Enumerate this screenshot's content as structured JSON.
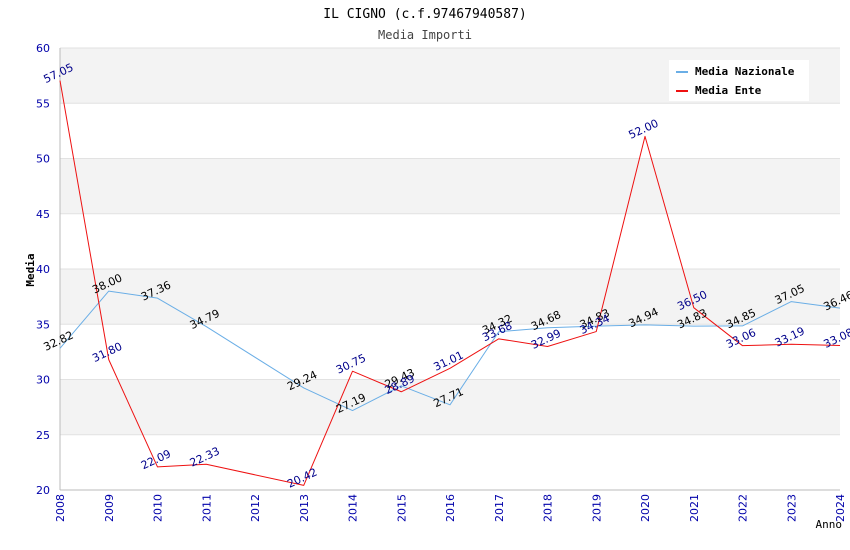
{
  "chart_data": {
    "type": "line",
    "title": "IL CIGNO (c.f.97467940587)",
    "subtitle": "Media Importi",
    "xlabel": "Anno",
    "ylabel": "Media",
    "ylim": [
      20,
      60
    ],
    "yticks": [
      20,
      25,
      30,
      35,
      40,
      45,
      50,
      55,
      60
    ],
    "grid": true,
    "legend_position": "top-right",
    "x": [
      "2008",
      "2009",
      "2010",
      "2011",
      "2012",
      "2013",
      "2014",
      "2015",
      "2016",
      "2017",
      "2018",
      "2019",
      "2020",
      "2021",
      "2022",
      "2023",
      "2024"
    ],
    "series": [
      {
        "name": "Media Nazionale",
        "color": "#6aaee6",
        "label_color": "#000000",
        "x": [
          "2008",
          "2009",
          "2010",
          "2011",
          "2013",
          "2014",
          "2015",
          "2016",
          "2017",
          "2018",
          "2019",
          "2020",
          "2021",
          "2022",
          "2023",
          "2024"
        ],
        "values": [
          32.82,
          38.0,
          37.36,
          34.79,
          29.24,
          27.19,
          29.43,
          27.71,
          34.32,
          34.68,
          34.83,
          34.94,
          34.83,
          34.85,
          37.05,
          36.46
        ],
        "labels": [
          "32.82",
          "38.00",
          "37.36",
          "34.79",
          "29.24",
          "27.19",
          "29.43",
          "27.71",
          "34.32",
          "34.68",
          "34.83",
          "34.94",
          "34.83",
          "34.85",
          "37.05",
          "36.46"
        ]
      },
      {
        "name": "Media Ente",
        "color": "#ee1111",
        "label_color": "#00008b",
        "x": [
          "2008",
          "2009",
          "2010",
          "2011",
          "2013",
          "2014",
          "2015",
          "2016",
          "2017",
          "2018",
          "2019",
          "2020",
          "2021",
          "2022",
          "2023",
          "2024"
        ],
        "values": [
          57.05,
          31.8,
          22.09,
          22.33,
          20.42,
          30.75,
          28.89,
          31.01,
          33.68,
          32.99,
          34.34,
          52.0,
          36.5,
          33.06,
          33.19,
          33.08
        ],
        "labels": [
          "57.05",
          "31.80",
          "22.09",
          "22.33",
          "20.42",
          "30.75",
          "28.89",
          "31.01",
          "33.68",
          "32.99",
          "34.34",
          "52.00",
          "36.50",
          "33.06",
          "33.19",
          "33.08"
        ]
      }
    ]
  }
}
